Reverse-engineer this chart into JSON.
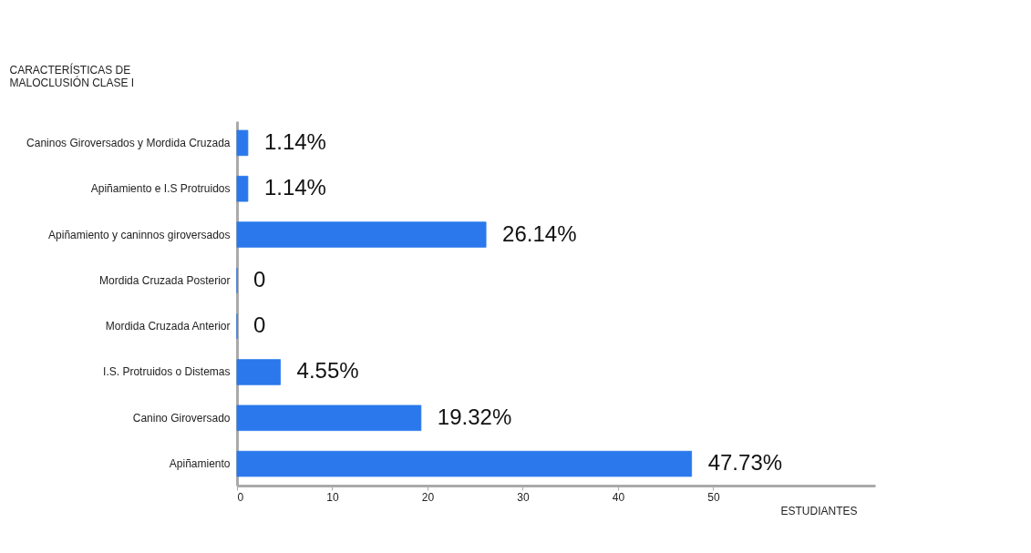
{
  "chart_data": {
    "type": "bar",
    "orientation": "horizontal",
    "ylabel": "CARACTERÍSTICAS DE\nMALOCLUSIÓN CLASE I",
    "xlabel": "ESTUDIANTES",
    "categories": [
      "Caninos Giroversados y Mordida Cruzada",
      "Apiñamiento e I.S Protruidos",
      "Apiñamiento y caninnos giroversados",
      "Mordida Cruzada Posterior",
      "Mordida Cruzada Anterior",
      "I.S. Protruidos o Distemas",
      "Canino Giroversado",
      "Apiñamiento"
    ],
    "values": [
      1.14,
      1.14,
      26.14,
      0,
      0,
      4.55,
      19.32,
      47.73
    ],
    "value_labels": [
      "1.14%",
      "1.14%",
      "26.14%",
      "0",
      "0",
      "4.55%",
      "19.32%",
      "47.73%"
    ],
    "color": "#2a78ec",
    "xlim": [
      0,
      67
    ],
    "xticks": [
      0,
      10,
      20,
      30,
      40,
      50
    ],
    "grid": false
  }
}
